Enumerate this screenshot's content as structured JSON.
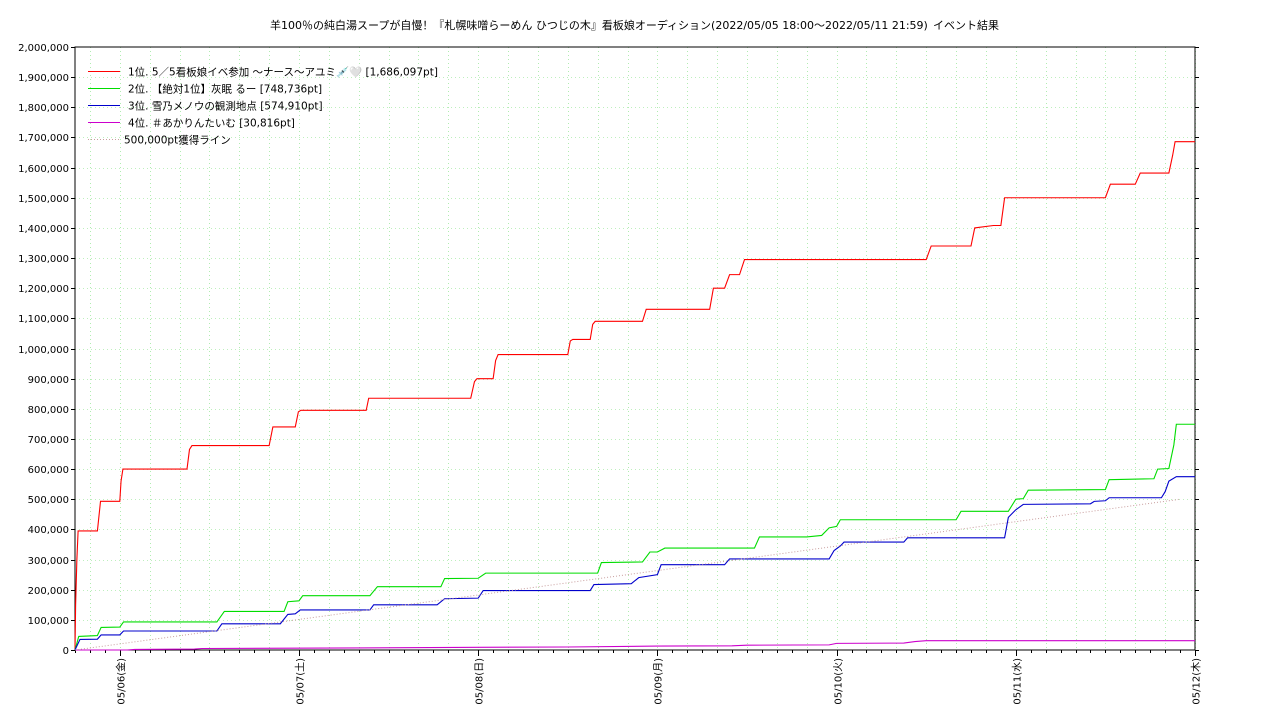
{
  "chart_data": {
    "type": "line",
    "title": "羊100％の純白湯スープが自慢！『札幌味噌らーめん ひつじの木』看板娘オーディション(2022/05/05 18:00〜2022/05/11 21:59)",
    "subtitle": "イベント結果",
    "xlabel": "",
    "ylabel": "",
    "x_range": [
      "2022-05-05 18:00",
      "2022-05-12 00:00"
    ],
    "ylim": [
      0,
      2000000
    ],
    "y_ticks": [
      0,
      100000,
      200000,
      300000,
      400000,
      500000,
      600000,
      700000,
      800000,
      900000,
      1000000,
      1100000,
      1200000,
      1300000,
      1400000,
      1500000,
      1600000,
      1700000,
      1800000,
      1900000,
      2000000
    ],
    "y_tick_labels": [
      "0",
      "100,000",
      "200,000",
      "300,000",
      "400,000",
      "500,000",
      "600,000",
      "700,000",
      "800,000",
      "900,000",
      "1,000,000",
      "1,100,000",
      "1,200,000",
      "1,300,000",
      "1,400,000",
      "1,500,000",
      "1,600,000",
      "1,700,000",
      "1,800,000",
      "1,900,000",
      "2,000,000"
    ],
    "x_ticks": [
      {
        "x": "2022-05-06 00:00",
        "label": "05/06(金)"
      },
      {
        "x": "2022-05-07 00:00",
        "label": "05/07(土)"
      },
      {
        "x": "2022-05-08 00:00",
        "label": "05/08(日)"
      },
      {
        "x": "2022-05-09 00:00",
        "label": "05/09(月)"
      },
      {
        "x": "2022-05-10 00:00",
        "label": "05/10(火)"
      },
      {
        "x": "2022-05-11 00:00",
        "label": "05/11(水)"
      },
      {
        "x": "2022-05-12 00:00",
        "label": "05/12(木)"
      }
    ],
    "grid": true,
    "legend_position": "top-left",
    "series": [
      {
        "name": "1位. 5／5看板娘イベ参加 〜ナース〜アユミ💉🤍 [1,686,097pt]",
        "color": "#ff0000",
        "points": [
          [
            "2022-05-05 18:00",
            0
          ],
          [
            "2022-05-05 18:05",
            150000
          ],
          [
            "2022-05-05 18:15",
            300000
          ],
          [
            "2022-05-05 18:25",
            395000
          ],
          [
            "2022-05-05 21:00",
            395000
          ],
          [
            "2022-05-05 21:25",
            493000
          ],
          [
            "2022-05-06 00:00",
            493000
          ],
          [
            "2022-05-06 00:10",
            560000
          ],
          [
            "2022-05-06 00:25",
            600000
          ],
          [
            "2022-05-06 03:00",
            600000
          ],
          [
            "2022-05-06 03:00",
            600000
          ],
          [
            "2022-05-06 09:00",
            600000
          ],
          [
            "2022-05-06 09:20",
            665000
          ],
          [
            "2022-05-06 09:40",
            678000
          ],
          [
            "2022-05-06 20:00",
            678000
          ],
          [
            "2022-05-06 20:30",
            740000
          ],
          [
            "2022-05-06 23:30",
            740000
          ],
          [
            "2022-05-06 23:55",
            790000
          ],
          [
            "2022-05-07 00:15",
            795000
          ],
          [
            "2022-05-07 09:00",
            795000
          ],
          [
            "2022-05-07 09:20",
            835000
          ],
          [
            "2022-05-07 23:00",
            835000
          ],
          [
            "2022-05-07 23:30",
            890000
          ],
          [
            "2022-05-07 23:50",
            900000
          ],
          [
            "2022-05-08 02:00",
            900000
          ],
          [
            "2022-05-08 02:20",
            960000
          ],
          [
            "2022-05-08 02:40",
            980000
          ],
          [
            "2022-05-08 12:00",
            980000
          ],
          [
            "2022-05-08 12:20",
            1025000
          ],
          [
            "2022-05-08 12:40",
            1030000
          ],
          [
            "2022-05-08 15:00",
            1030000
          ],
          [
            "2022-05-08 15:20",
            1080000
          ],
          [
            "2022-05-08 15:40",
            1090000
          ],
          [
            "2022-05-08 22:00",
            1090000
          ],
          [
            "2022-05-08 22:30",
            1130000
          ],
          [
            "2022-05-09 07:00",
            1130000
          ],
          [
            "2022-05-09 07:30",
            1200000
          ],
          [
            "2022-05-09 09:00",
            1200000
          ],
          [
            "2022-05-09 09:40",
            1245000
          ],
          [
            "2022-05-09 11:00",
            1245000
          ],
          [
            "2022-05-09 11:40",
            1295000
          ],
          [
            "2022-05-10 12:00",
            1295000
          ],
          [
            "2022-05-10 12:40",
            1340000
          ],
          [
            "2022-05-10 18:00",
            1340000
          ],
          [
            "2022-05-10 18:30",
            1400000
          ],
          [
            "2022-05-10 21:00",
            1408000
          ],
          [
            "2022-05-10 22:00",
            1408000
          ],
          [
            "2022-05-10 22:30",
            1500000
          ],
          [
            "2022-05-11 12:00",
            1500000
          ],
          [
            "2022-05-11 12:40",
            1545000
          ],
          [
            "2022-05-11 16:00",
            1545000
          ],
          [
            "2022-05-11 16:40",
            1582000
          ],
          [
            "2022-05-11 20:30",
            1582000
          ],
          [
            "2022-05-11 21:00",
            1640000
          ],
          [
            "2022-05-11 21:20",
            1686097
          ],
          [
            "2022-05-12 00:00",
            1686097
          ]
        ]
      },
      {
        "name": "2位. 【絶対1位】灰眠 るー [748,736pt]",
        "color": "#00dd00",
        "points": [
          [
            "2022-05-05 18:00",
            0
          ],
          [
            "2022-05-05 18:30",
            45000
          ],
          [
            "2022-05-05 21:00",
            48000
          ],
          [
            "2022-05-05 21:30",
            75000
          ],
          [
            "2022-05-06 00:00",
            76000
          ],
          [
            "2022-05-06 00:30",
            93000
          ],
          [
            "2022-05-06 13:00",
            93000
          ],
          [
            "2022-05-06 14:00",
            128000
          ],
          [
            "2022-05-06 22:00",
            128000
          ],
          [
            "2022-05-06 22:30",
            160000
          ],
          [
            "2022-05-07 00:00",
            163000
          ],
          [
            "2022-05-07 00:30",
            180000
          ],
          [
            "2022-05-07 09:30",
            180000
          ],
          [
            "2022-05-07 10:30",
            210000
          ],
          [
            "2022-05-07 19:00",
            210000
          ],
          [
            "2022-05-07 19:30",
            237000
          ],
          [
            "2022-05-08 00:00",
            238000
          ],
          [
            "2022-05-08 01:00",
            255000
          ],
          [
            "2022-05-08 16:00",
            255000
          ],
          [
            "2022-05-08 16:30",
            290000
          ],
          [
            "2022-05-08 22:00",
            292000
          ],
          [
            "2022-05-08 23:00",
            325000
          ],
          [
            "2022-05-09 00:00",
            325000
          ],
          [
            "2022-05-09 01:00",
            338000
          ],
          [
            "2022-05-09 13:00",
            338000
          ],
          [
            "2022-05-09 13:40",
            375000
          ],
          [
            "2022-05-09 20:00",
            375000
          ],
          [
            "2022-05-09 22:00",
            380000
          ],
          [
            "2022-05-09 23:00",
            405000
          ],
          [
            "2022-05-10 00:00",
            410000
          ],
          [
            "2022-05-10 00:30",
            432000
          ],
          [
            "2022-05-10 16:00",
            432000
          ],
          [
            "2022-05-10 16:40",
            460000
          ],
          [
            "2022-05-10 23:00",
            460000
          ],
          [
            "2022-05-11 00:00",
            500000
          ],
          [
            "2022-05-11 01:00",
            502000
          ],
          [
            "2022-05-11 01:40",
            530000
          ],
          [
            "2022-05-11 12:00",
            532000
          ],
          [
            "2022-05-11 12:30",
            565000
          ],
          [
            "2022-05-11 18:30",
            568000
          ],
          [
            "2022-05-11 19:00",
            600000
          ],
          [
            "2022-05-11 20:30",
            602000
          ],
          [
            "2022-05-11 21:10",
            680000
          ],
          [
            "2022-05-11 21:30",
            748736
          ],
          [
            "2022-05-12 00:00",
            748736
          ]
        ]
      },
      {
        "name": "3位. 雪乃メノウの観測地点 [574,910pt]",
        "color": "#0000cc",
        "points": [
          [
            "2022-05-05 18:00",
            0
          ],
          [
            "2022-05-05 18:40",
            35000
          ],
          [
            "2022-05-05 21:00",
            36000
          ],
          [
            "2022-05-05 21:30",
            50000
          ],
          [
            "2022-05-06 00:00",
            50000
          ],
          [
            "2022-05-06 00:30",
            63000
          ],
          [
            "2022-05-06 13:00",
            63000
          ],
          [
            "2022-05-06 13:40",
            87000
          ],
          [
            "2022-05-06 21:30",
            87000
          ],
          [
            "2022-05-06 22:30",
            118000
          ],
          [
            "2022-05-06 23:30",
            120000
          ],
          [
            "2022-05-07 00:10",
            133000
          ],
          [
            "2022-05-07 09:30",
            133000
          ],
          [
            "2022-05-07 10:00",
            150000
          ],
          [
            "2022-05-07 18:30",
            150000
          ],
          [
            "2022-05-07 19:30",
            170000
          ],
          [
            "2022-05-08 00:00",
            172000
          ],
          [
            "2022-05-08 00:40",
            197000
          ],
          [
            "2022-05-08 15:00",
            197000
          ],
          [
            "2022-05-08 15:30",
            217000
          ],
          [
            "2022-05-08 20:30",
            220000
          ],
          [
            "2022-05-08 21:30",
            240000
          ],
          [
            "2022-05-09 00:00",
            250000
          ],
          [
            "2022-05-09 00:30",
            283000
          ],
          [
            "2022-05-09 09:00",
            283000
          ],
          [
            "2022-05-09 09:40",
            302000
          ],
          [
            "2022-05-09 23:00",
            302000
          ],
          [
            "2022-05-09 23:40",
            330000
          ],
          [
            "2022-05-10 00:30",
            345000
          ],
          [
            "2022-05-10 01:00",
            358000
          ],
          [
            "2022-05-10 09:00",
            358000
          ],
          [
            "2022-05-10 09:30",
            372000
          ],
          [
            "2022-05-10 22:30",
            372000
          ],
          [
            "2022-05-10 23:00",
            440000
          ],
          [
            "2022-05-11 00:00",
            465000
          ],
          [
            "2022-05-11 01:00",
            483000
          ],
          [
            "2022-05-11 10:00",
            485000
          ],
          [
            "2022-05-11 10:30",
            493000
          ],
          [
            "2022-05-11 12:00",
            495000
          ],
          [
            "2022-05-11 12:30",
            505000
          ],
          [
            "2022-05-11 19:30",
            505000
          ],
          [
            "2022-05-11 20:00",
            525000
          ],
          [
            "2022-05-11 20:30",
            560000
          ],
          [
            "2022-05-11 21:30",
            574910
          ],
          [
            "2022-05-12 00:00",
            574910
          ]
        ]
      },
      {
        "name": "4位. ＃あかりんたいむ [30,816pt]",
        "color": "#cc00cc",
        "points": [
          [
            "2022-05-05 18:00",
            0
          ],
          [
            "2022-05-06 01:00",
            0
          ],
          [
            "2022-05-06 02:00",
            2000
          ],
          [
            "2022-05-06 10:00",
            3000
          ],
          [
            "2022-05-06 11:00",
            5000
          ],
          [
            "2022-05-07 08:00",
            7000
          ],
          [
            "2022-05-08 00:00",
            9000
          ],
          [
            "2022-05-08 12:00",
            10000
          ],
          [
            "2022-05-09 00:00",
            13000
          ],
          [
            "2022-05-09 10:00",
            14000
          ],
          [
            "2022-05-09 12:00",
            16000
          ],
          [
            "2022-05-09 23:00",
            17000
          ],
          [
            "2022-05-10 00:00",
            22000
          ],
          [
            "2022-05-10 09:00",
            23000
          ],
          [
            "2022-05-10 10:30",
            28000
          ],
          [
            "2022-05-10 12:00",
            30816
          ],
          [
            "2022-05-12 00:00",
            30816
          ]
        ]
      },
      {
        "name": "500,000pt獲得ライン",
        "color": "#c89e9e",
        "dotted": true,
        "points": [
          [
            "2022-05-05 18:00",
            0
          ],
          [
            "2022-05-11 22:00",
            500000
          ]
        ]
      }
    ]
  }
}
